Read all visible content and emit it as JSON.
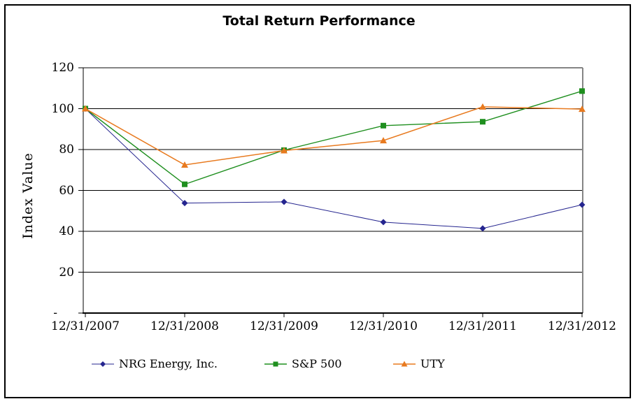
{
  "chart_data": {
    "type": "line",
    "title": "Total Return Performance",
    "ylabel": "Index Value",
    "categories": [
      "12/31/2007",
      "12/31/2008",
      "12/31/2009",
      "12/31/2010",
      "12/31/2011",
      "12/31/2012"
    ],
    "series": [
      {
        "name": "NRG Energy, Inc.",
        "color": "#25258F",
        "marker": "diamond",
        "line_width": 1,
        "values": [
          100,
          53.8,
          54.4,
          44.5,
          41.4,
          53.0
        ]
      },
      {
        "name": "S&P 500",
        "color": "#1F8F1F",
        "marker": "square",
        "line_width": 1.4,
        "values": [
          100,
          63.0,
          79.7,
          91.7,
          93.6,
          108.6
        ]
      },
      {
        "name": "UTY",
        "color": "#E87A1F",
        "marker": "triangle",
        "line_width": 1.5,
        "values": [
          100,
          72.5,
          79.5,
          84.4,
          100.9,
          99.8
        ]
      }
    ],
    "ylim": [
      0,
      120
    ],
    "y_ticks": [
      {
        "label": "120",
        "value": 120
      },
      {
        "label": "100",
        "value": 100
      },
      {
        "label": "80",
        "value": 80
      },
      {
        "label": "60",
        "value": 60
      },
      {
        "label": "40",
        "value": 40
      },
      {
        "label": "20",
        "value": 20
      },
      {
        "label": "-",
        "value": 0
      }
    ],
    "grid": "horizontal",
    "legend_position": "bottom"
  },
  "colors": {
    "background": "#FFFFFF",
    "frame_border": "#000000",
    "gridline": "#000000",
    "plot_border": "#848484",
    "axis": "#000000",
    "text": "#000000"
  }
}
